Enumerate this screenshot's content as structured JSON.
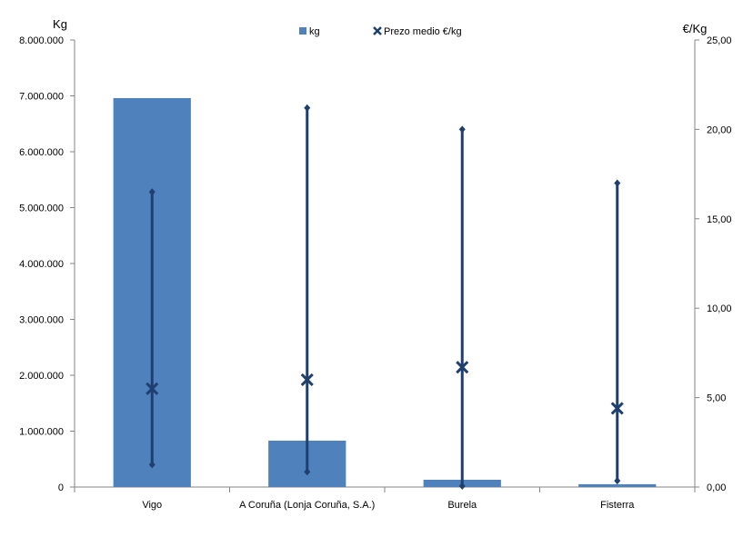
{
  "chart_data": {
    "type": "bar",
    "categories": [
      "Vigo",
      "A Coruña (Lonja Coruña, S.A.)",
      "Burela",
      "Fisterra"
    ],
    "series": [
      {
        "name": "kg",
        "type": "bar",
        "axis": "left",
        "values": [
          6960000,
          830000,
          130000,
          50000
        ]
      },
      {
        "name": "Prezo medio €/kg",
        "type": "marker",
        "axis": "right",
        "values": [
          5.5,
          6.0,
          6.7,
          4.4
        ],
        "min": [
          1.25,
          0.85,
          0.05,
          0.35
        ],
        "max": [
          16.5,
          21.2,
          20.0,
          17.0
        ]
      }
    ],
    "y_left": {
      "label": "Kg",
      "min": 0,
      "max": 8000000,
      "step": 1000000,
      "ticks": [
        "0",
        "1.000.000",
        "2.000.000",
        "3.000.000",
        "4.000.000",
        "5.000.000",
        "6.000.000",
        "7.000.000",
        "8.000.000"
      ]
    },
    "y_right": {
      "label": "€/Kg",
      "min": 0,
      "max": 25,
      "step": 5,
      "ticks": [
        "0,00",
        "5,00",
        "10,00",
        "15,00",
        "20,00",
        "25,00"
      ]
    },
    "legend": {
      "position": "top-center"
    },
    "grid": false,
    "colors": {
      "bar": "#4f81bd",
      "range": "#1f3f6e",
      "axis": "#868686"
    }
  }
}
